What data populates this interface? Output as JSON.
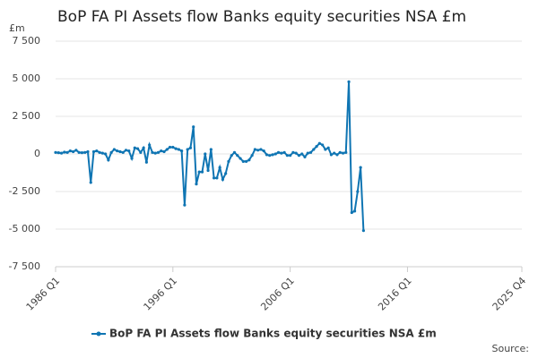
{
  "chart_data": {
    "type": "line",
    "title": "BoP FA PI Assets flow Banks equity securities NSA £m",
    "y_unit": "£m",
    "source": "Source:",
    "categories": [
      "1986 Q1",
      null,
      null,
      null,
      null,
      null,
      null,
      null,
      null,
      null,
      null,
      null,
      null,
      null,
      null,
      null,
      null,
      null,
      null,
      null,
      null,
      null,
      null,
      null,
      null,
      null,
      null,
      null,
      null,
      null,
      null,
      null,
      null,
      null,
      null,
      null,
      null,
      null,
      null,
      null,
      "1996 Q1",
      null,
      null,
      null,
      null,
      null,
      null,
      null,
      null,
      null,
      null,
      null,
      null,
      null,
      null,
      null,
      null,
      null,
      null,
      null,
      null,
      null,
      null,
      null,
      null,
      null,
      null,
      null,
      null,
      null,
      null,
      null,
      null,
      null,
      null,
      null,
      null,
      null,
      null,
      null,
      "2006 Q1",
      null,
      null,
      null,
      null,
      null,
      null,
      null,
      null,
      null,
      null,
      null,
      null,
      null,
      null,
      null,
      null,
      null,
      null,
      null,
      null,
      null,
      null,
      null,
      null,
      null,
      null,
      null,
      null,
      null,
      null,
      null,
      null,
      null,
      null,
      null,
      null,
      null,
      null,
      null,
      "2016 Q1",
      null,
      null,
      null,
      null,
      null,
      null,
      null,
      null,
      null,
      null,
      null,
      null,
      null,
      null,
      null,
      null,
      null,
      null,
      null,
      null,
      null,
      null,
      null,
      null,
      null,
      null,
      null,
      null,
      null,
      null,
      null,
      null,
      null,
      null,
      null,
      null,
      null,
      null,
      "2025 Q4"
    ],
    "series": [
      {
        "name": "BoP FA PI Assets flow Banks equity securities NSA £m",
        "color": "#0f75b3",
        "values": [
          100,
          80,
          50,
          120,
          100,
          200,
          150,
          250,
          100,
          80,
          100,
          150,
          -1900,
          150,
          200,
          100,
          50,
          0,
          -400,
          100,
          300,
          200,
          150,
          100,
          250,
          200,
          -300,
          400,
          350,
          100,
          400,
          -550,
          600,
          100,
          50,
          100,
          200,
          150,
          300,
          450,
          450,
          350,
          300,
          200,
          -3400,
          300,
          400,
          1800,
          -2000,
          -1200,
          -1200,
          0,
          -1100,
          300,
          -1600,
          -1600,
          -900,
          -1700,
          -1300,
          -500,
          -100,
          100,
          -100,
          -300,
          -500,
          -500,
          -400,
          -100,
          300,
          250,
          300,
          200,
          -50,
          -100,
          -50,
          0,
          100,
          50,
          100,
          -100,
          -100,
          100,
          50,
          -100,
          0,
          -200,
          50,
          100,
          300,
          500,
          700,
          600,
          300,
          400,
          -50,
          50,
          -50,
          100,
          50,
          100,
          4800,
          -3900,
          -3800,
          -2500,
          -900,
          -5100,
          null,
          null,
          null,
          null,
          null,
          null,
          null,
          null,
          null,
          null,
          null,
          null,
          null,
          null,
          null,
          null,
          null,
          null,
          null,
          null,
          null,
          null,
          null,
          null,
          null,
          null,
          null,
          null,
          null,
          null,
          null,
          null,
          null,
          null,
          null,
          null,
          null,
          null,
          null,
          null,
          null,
          null,
          null,
          null,
          null,
          null,
          null,
          null,
          null,
          null,
          null,
          null,
          null,
          null
        ]
      }
    ],
    "ylim": [
      -7500,
      7500
    ],
    "yticks": [
      {
        "value": 7500,
        "label": "7 500"
      },
      {
        "value": 5000,
        "label": "5 000"
      },
      {
        "value": 2500,
        "label": "2 500"
      },
      0,
      {
        "value": -2500,
        "label": "-2 500"
      },
      {
        "value": -5000,
        "label": "-5 000"
      },
      {
        "value": -7500,
        "label": "-7 500"
      }
    ],
    "grid": true,
    "legend": "bottom"
  }
}
